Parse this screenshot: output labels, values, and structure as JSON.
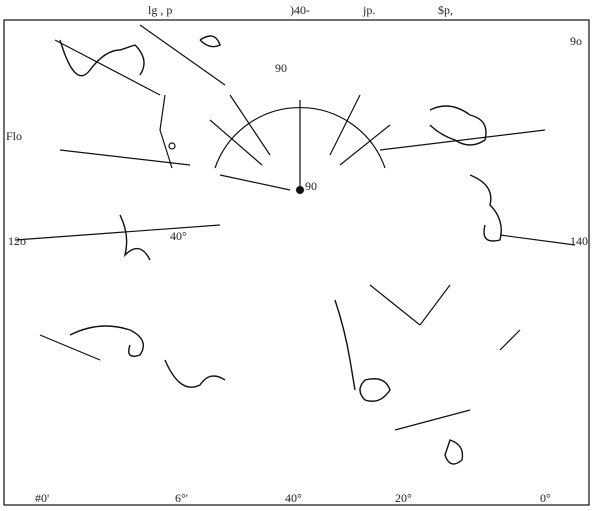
{
  "header_labels": [
    "lg , p",
    ")40-",
    "jp.",
    "$p,"
  ],
  "map_labels": [
    "9o",
    "90",
    "Flo",
    "90",
    "12o",
    "40°",
    "140"
  ],
  "bottom_labels": [
    "#0'",
    "6°'",
    "40°",
    "20°",
    "0°"
  ]
}
